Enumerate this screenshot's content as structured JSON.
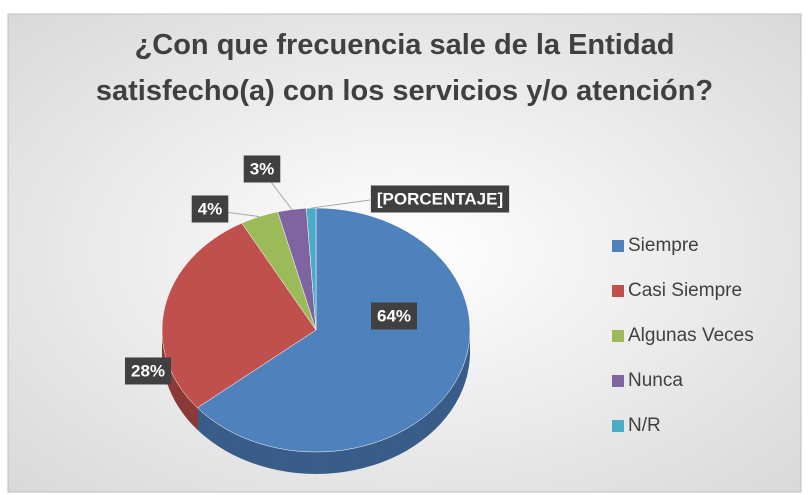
{
  "chart_data": {
    "type": "pie",
    "title": "¿Con que frecuencia sale de la Entidad satisfecho(a) con los servicios y/o atención?",
    "categories": [
      "Siempre",
      "Casi Siempre",
      "Algunas Veces",
      "Nunca",
      "N/R"
    ],
    "values": [
      64,
      28,
      4,
      3,
      1
    ],
    "value_labels": [
      "64%",
      "28%",
      "4%",
      "3%",
      "[PORCENTAJE]"
    ],
    "colors": [
      "#4f81bd",
      "#c0504d",
      "#9bbb59",
      "#8064a2",
      "#4bacc6"
    ],
    "legend": "right"
  }
}
